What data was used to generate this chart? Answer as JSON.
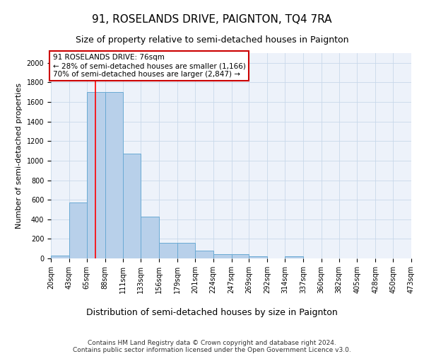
{
  "title": "91, ROSELANDS DRIVE, PAIGNTON, TQ4 7RA",
  "subtitle": "Size of property relative to semi-detached houses in Paignton",
  "xlabel": "Distribution of semi-detached houses by size in Paignton",
  "ylabel": "Number of semi-detached properties",
  "footer_line1": "Contains HM Land Registry data © Crown copyright and database right 2024.",
  "footer_line2": "Contains public sector information licensed under the Open Government Licence v3.0.",
  "annotation_title": "91 ROSELANDS DRIVE: 76sqm",
  "annotation_line1": "← 28% of semi-detached houses are smaller (1,166)",
  "annotation_line2": "70% of semi-detached houses are larger (2,847) →",
  "property_size": 76,
  "bin_edges": [
    20,
    43,
    65,
    88,
    111,
    133,
    156,
    179,
    201,
    224,
    247,
    269,
    292,
    314,
    337,
    360,
    382,
    405,
    428,
    450,
    473
  ],
  "bin_labels": [
    "20sqm",
    "43sqm",
    "65sqm",
    "88sqm",
    "111sqm",
    "133sqm",
    "156sqm",
    "179sqm",
    "201sqm",
    "224sqm",
    "247sqm",
    "269sqm",
    "292sqm",
    "314sqm",
    "337sqm",
    "360sqm",
    "382sqm",
    "405sqm",
    "428sqm",
    "450sqm",
    "473sqm"
  ],
  "bar_values": [
    30,
    570,
    1700,
    1700,
    1070,
    430,
    160,
    160,
    80,
    40,
    40,
    25,
    0,
    20,
    0,
    0,
    0,
    0,
    0,
    0
  ],
  "bar_color": "#b8d0ea",
  "bar_edgecolor": "#6aaad4",
  "redline_x": 76,
  "ylim": [
    0,
    2100
  ],
  "yticks": [
    0,
    200,
    400,
    600,
    800,
    1000,
    1200,
    1400,
    1600,
    1800,
    2000
  ],
  "grid_color": "#c8d8ea",
  "annotation_box_facecolor": "#ffffff",
  "annotation_box_edgecolor": "#cc0000",
  "title_fontsize": 11,
  "subtitle_fontsize": 9,
  "xlabel_fontsize": 9,
  "ylabel_fontsize": 8,
  "tick_fontsize": 7,
  "annotation_fontsize": 7.5,
  "footer_fontsize": 6.5,
  "background_color": "#edf2fa"
}
